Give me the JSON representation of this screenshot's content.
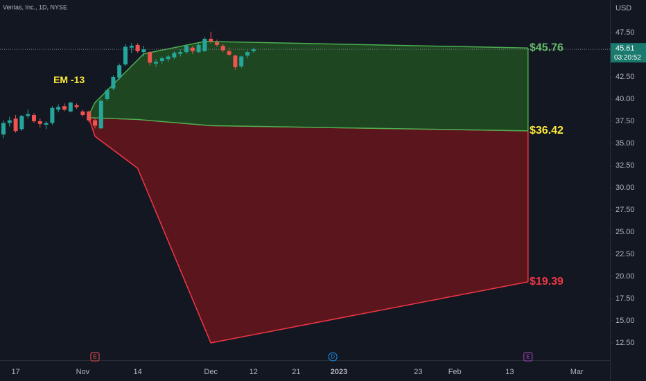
{
  "chart_data": {
    "type": "candlestick",
    "title": "Ventas, Inc., 1D, NYSE",
    "currency": "USD",
    "categories": [
      null,
      null,
      "17",
      null,
      null,
      null,
      null,
      null,
      null,
      null,
      null,
      null,
      null,
      "Nov",
      null,
      null,
      null,
      null,
      null,
      null,
      null,
      null,
      "14",
      null,
      null,
      null,
      null,
      null,
      null,
      null,
      null,
      null,
      null,
      null,
      "Dec",
      null,
      null,
      null,
      null,
      null,
      null,
      "12",
      null,
      null,
      null,
      null,
      null,
      null,
      "21",
      null,
      null,
      null,
      null,
      null,
      null,
      "2023",
      null,
      null,
      null,
      null,
      null,
      null,
      null,
      null,
      null,
      null,
      null,
      null,
      "23",
      null,
      null,
      null,
      null,
      null,
      "Feb",
      null,
      null,
      null,
      null,
      null,
      null,
      null,
      null,
      "13",
      null,
      null,
      null,
      null,
      null,
      null,
      null,
      null,
      null,
      null,
      "Mar",
      null,
      null,
      null,
      null,
      null
    ],
    "ohlc": {
      "open": [
        36.0,
        37.3,
        37.8,
        36.6,
        38.1,
        38.2,
        37.5,
        37.1,
        37.3,
        38.8,
        39.2,
        38.6,
        39.3,
        38.6,
        38.6,
        37.6,
        36.7,
        40.0,
        41.2,
        42.4,
        43.9,
        45.8,
        46.1,
        45.3,
        45.3,
        44.0,
        44.3,
        44.5,
        44.7,
        45.1,
        45.3,
        45.8,
        45.3,
        45.4,
        46.8,
        46.4,
        46.0,
        45.4,
        44.9,
        43.7,
        44.9,
        45.4,
        null,
        null,
        null,
        null,
        null,
        null,
        null,
        null,
        null,
        null,
        null,
        null,
        null,
        null,
        null,
        null,
        null,
        null,
        null,
        null,
        null,
        null,
        null,
        null,
        null,
        null,
        null,
        null,
        null,
        null,
        null,
        null,
        null,
        null,
        null,
        null,
        null,
        null,
        null,
        null,
        null,
        null,
        null,
        null,
        null,
        null,
        null,
        null,
        null,
        null,
        null,
        null,
        null,
        null,
        null,
        null,
        null,
        null
      ],
      "high": [
        37.6,
        38.0,
        38.2,
        38.2,
        38.8,
        38.4,
        37.8,
        37.5,
        39.2,
        39.4,
        39.5,
        39.7,
        39.5,
        38.8,
        38.7,
        37.8,
        40.0,
        41.2,
        42.7,
        44.0,
        46.2,
        46.3,
        46.3,
        46.0,
        45.4,
        44.5,
        44.8,
        45.0,
        45.4,
        45.6,
        46.2,
        46.0,
        46.3,
        47.0,
        47.6,
        46.7,
        46.2,
        45.8,
        45.0,
        44.9,
        45.5,
        45.8,
        null,
        null,
        null,
        null,
        null,
        null,
        null,
        null,
        null,
        null,
        null,
        null,
        null,
        null,
        null,
        null,
        null,
        null,
        null,
        null,
        null,
        null,
        null,
        null,
        null,
        null,
        null,
        null,
        null,
        null,
        null,
        null,
        null,
        null,
        null,
        null,
        null,
        null,
        null,
        null,
        null,
        null,
        null,
        null,
        null,
        null,
        null,
        null,
        null,
        null,
        null,
        null,
        null,
        null,
        null,
        null,
        null,
        null
      ],
      "low": [
        35.6,
        36.9,
        36.2,
        36.4,
        37.8,
        37.3,
        36.8,
        36.6,
        37.1,
        38.5,
        38.6,
        38.5,
        38.9,
        38.0,
        37.4,
        36.7,
        36.6,
        39.8,
        41.0,
        42.2,
        43.7,
        45.2,
        45.2,
        44.8,
        43.8,
        43.6,
        44.0,
        44.2,
        44.5,
        44.8,
        45.1,
        45.1,
        45.2,
        45.3,
        46.3,
        45.9,
        45.3,
        44.8,
        43.3,
        43.5,
        44.6,
        45.2,
        null,
        null,
        null,
        null,
        null,
        null,
        null,
        null,
        null,
        null,
        null,
        null,
        null,
        null,
        null,
        null,
        null,
        null,
        null,
        null,
        null,
        null,
        null,
        null,
        null,
        null,
        null,
        null,
        null,
        null,
        null,
        null,
        null,
        null,
        null,
        null,
        null,
        null,
        null,
        null,
        null,
        null,
        null,
        null,
        null,
        null,
        null,
        null,
        null,
        null,
        null,
        null,
        null,
        null,
        null,
        null,
        null,
        null
      ],
      "close": [
        37.3,
        37.6,
        36.4,
        38.1,
        38.3,
        37.5,
        37.2,
        37.3,
        39.0,
        39.1,
        38.8,
        39.6,
        39.1,
        38.2,
        37.6,
        37.0,
        39.8,
        41.0,
        42.5,
        43.8,
        45.9,
        46.0,
        45.4,
        45.6,
        44.1,
        44.2,
        44.6,
        44.8,
        45.2,
        45.3,
        46.0,
        45.4,
        46.1,
        46.8,
        46.5,
        46.1,
        45.5,
        45.0,
        43.6,
        44.8,
        45.3,
        45.61,
        null,
        null,
        null,
        null,
        null,
        null,
        null,
        null,
        null,
        null,
        null,
        null,
        null,
        null,
        null,
        null,
        null,
        null,
        null,
        null,
        null,
        null,
        null,
        null,
        null,
        null,
        null,
        null,
        null,
        null,
        null,
        null,
        null,
        null,
        null,
        null,
        null,
        null,
        null,
        null,
        null,
        null,
        null,
        null,
        null,
        null,
        null,
        null,
        null,
        null,
        null,
        null,
        null,
        null,
        null,
        null,
        null,
        null
      ]
    },
    "up_color": "#26a69a",
    "down_color": "#ef5350",
    "bands": [
      {
        "fill": "#5b161d",
        "stroke": "#f23645",
        "upper": {
          "x": [
            14,
            22,
            34,
            86
          ],
          "values": [
            37.9,
            37.7,
            37.0,
            36.42
          ]
        },
        "lower": {
          "x": [
            14,
            15,
            22,
            34,
            86
          ],
          "values": [
            37.9,
            35.8,
            32.2,
            12.5,
            19.39
          ]
        }
      },
      {
        "fill": "#1e4621",
        "stroke": "#4caf50",
        "upper": {
          "x": [
            14,
            15,
            23,
            33,
            86
          ],
          "values": [
            38.2,
            39.6,
            45.1,
            46.5,
            45.76
          ]
        },
        "lower": {
          "x": [
            14,
            22,
            34,
            86
          ],
          "values": [
            37.9,
            37.7,
            37.0,
            36.42
          ]
        }
      }
    ],
    "targets": [
      {
        "value": 45.76,
        "label": "$45.76",
        "color": "#66bb6a"
      },
      {
        "value": 36.42,
        "label": "$36.42",
        "color": "#ffeb3b"
      },
      {
        "value": 19.39,
        "label": "$19.39",
        "color": "#f23645"
      }
    ],
    "annotation": {
      "text": "EM -13",
      "x": 14,
      "y": 42.1,
      "color": "#ffeb3b"
    },
    "last": {
      "value": 45.61,
      "time": "03:20:52"
    },
    "events": [
      {
        "label": "E",
        "index": 15,
        "color": "#ef5350"
      },
      {
        "label": "D",
        "index": 54,
        "color": "#2196f3"
      },
      {
        "label": "E",
        "index": 86,
        "color": "#ab47bc"
      }
    ],
    "ylim": [
      10.55,
      51.17
    ],
    "yticks": [
      {
        "value": 12.5,
        "label": "12.50"
      },
      {
        "value": 15,
        "label": "15.00"
      },
      {
        "value": 17.5,
        "label": "17.50"
      },
      {
        "value": 20,
        "label": "20.00"
      },
      {
        "value": 22.5,
        "label": "22.50"
      },
      {
        "value": 25,
        "label": "25.00"
      },
      {
        "value": 27.5,
        "label": "27.50"
      },
      {
        "value": 30,
        "label": "30.00"
      },
      {
        "value": 32.5,
        "label": "32.50"
      },
      {
        "value": 35,
        "label": "35.00"
      },
      {
        "value": 37.5,
        "label": "37.50"
      },
      {
        "value": 40,
        "label": "40.00"
      },
      {
        "value": 42.5,
        "label": "42.50"
      },
      {
        "value": 45,
        "label": "45.00"
      },
      {
        "value": 47.5,
        "label": "47.50"
      }
    ]
  }
}
